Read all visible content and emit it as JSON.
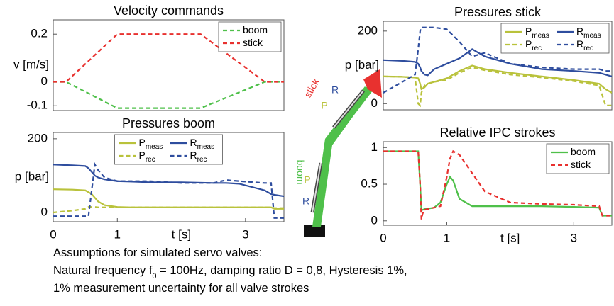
{
  "chart_data": [
    {
      "type": "line",
      "title": "Velocity commands",
      "ylabel": "v [m/s]",
      "x": [
        0,
        0.2,
        1.0,
        2.3,
        3.3,
        3.6
      ],
      "xlim": [
        0,
        3.6
      ],
      "ylim": [
        -0.12,
        0.26
      ],
      "yticks": [
        -0.1,
        0,
        0.2
      ],
      "legend": "upper right",
      "legend_columns": 1,
      "series": [
        {
          "name": "boom",
          "color": "#4fc04a",
          "linestyle": "dashed",
          "values": [
            0,
            0,
            -0.11,
            -0.11,
            0,
            0
          ]
        },
        {
          "name": "stick",
          "color": "#e8312f",
          "linestyle": "dashed",
          "values": [
            0,
            0,
            0.2,
            0.2,
            0,
            0
          ]
        }
      ]
    },
    {
      "type": "line",
      "title": "Pressures boom",
      "ylabel": "p [bar]",
      "x": [
        0,
        0.3,
        0.5,
        0.55,
        0.6,
        0.65,
        0.7,
        0.8,
        1.0,
        1.2,
        1.5,
        2.0,
        2.5,
        2.7,
        2.9,
        3.3,
        3.4,
        3.45,
        3.6
      ],
      "xlim": [
        0,
        3.6
      ],
      "ylim": [
        -25,
        217
      ],
      "yticks": [
        0,
        200
      ],
      "xticks": [
        0,
        1,
        3
      ],
      "xlabel": "t [s]",
      "legend": "upper center",
      "legend_columns": 2,
      "series": [
        {
          "name": "P",
          "sub": "meas",
          "color": "#b9c23b",
          "linestyle": "solid",
          "values": [
            63,
            62,
            60,
            55,
            50,
            40,
            30,
            20,
            15,
            14,
            14,
            14,
            14,
            14,
            14,
            14,
            14,
            10,
            10
          ]
        },
        {
          "name": "P",
          "sub": "rec",
          "color": "#b9c23b",
          "linestyle": "dashed",
          "values": [
            0,
            5,
            10,
            15,
            15,
            15,
            14,
            14,
            14,
            14,
            14,
            14,
            14,
            14,
            14,
            14,
            14,
            12,
            12
          ]
        },
        {
          "name": "R",
          "sub": "meas",
          "color": "#2e4d9e",
          "linestyle": "solid",
          "values": [
            130,
            128,
            126,
            120,
            110,
            100,
            95,
            90,
            85,
            84,
            82,
            82,
            80,
            80,
            78,
            60,
            50,
            48,
            44
          ]
        },
        {
          "name": "R",
          "sub": "rec",
          "color": "#2e4d9e",
          "linestyle": "dashed",
          "values": [
            -10,
            -10,
            -10,
            -10,
            60,
            130,
            115,
            95,
            85,
            85,
            85,
            80,
            80,
            88,
            85,
            80,
            80,
            -15,
            -15
          ]
        }
      ]
    },
    {
      "type": "line",
      "title": "Pressures stick",
      "ylabel": "p [bar]",
      "x": [
        0,
        0.3,
        0.5,
        0.55,
        0.58,
        0.6,
        0.65,
        0.7,
        0.8,
        1.0,
        1.2,
        1.4,
        1.6,
        2.0,
        2.5,
        3.0,
        3.4,
        3.5,
        3.6
      ],
      "xlim": [
        0,
        3.6
      ],
      "ylim": [
        -17,
        227
      ],
      "yticks": [
        0,
        200
      ],
      "legend": "upper right",
      "legend_columns": 2,
      "series": [
        {
          "name": "P",
          "sub": "meas",
          "color": "#b9c23b",
          "linestyle": "solid",
          "values": [
            75,
            74,
            72,
            70,
            55,
            40,
            45,
            55,
            60,
            70,
            90,
            105,
            95,
            85,
            75,
            65,
            55,
            40,
            30
          ]
        },
        {
          "name": "P",
          "sub": "rec",
          "color": "#b9c23b",
          "linestyle": "dashed",
          "values": [
            75,
            74,
            72,
            0,
            -5,
            30,
            50,
            55,
            60,
            65,
            85,
            100,
            92,
            80,
            72,
            62,
            50,
            -5,
            -5
          ]
        },
        {
          "name": "R",
          "sub": "meas",
          "color": "#2e4d9e",
          "linestyle": "solid",
          "values": [
            120,
            118,
            115,
            110,
            100,
            90,
            80,
            78,
            95,
            110,
            125,
            150,
            130,
            110,
            95,
            90,
            85,
            80,
            75
          ]
        },
        {
          "name": "R",
          "sub": "rec",
          "color": "#2e4d9e",
          "linestyle": "dashed",
          "values": [
            30,
            60,
            80,
            150,
            200,
            210,
            210,
            210,
            210,
            205,
            170,
            130,
            140,
            110,
            100,
            95,
            95,
            90,
            90
          ]
        }
      ]
    },
    {
      "type": "line",
      "title": "Relative IPC strokes",
      "x": [
        0,
        0.55,
        0.58,
        0.6,
        0.62,
        0.65,
        0.8,
        0.9,
        1.0,
        1.05,
        1.1,
        1.2,
        1.4,
        1.6,
        2.0,
        2.5,
        3.0,
        3.4,
        3.45,
        3.6
      ],
      "xlim": [
        0,
        3.6
      ],
      "ylim": [
        -0.06,
        1.08
      ],
      "yticks": [
        0,
        0.5,
        1
      ],
      "xticks": [
        0,
        1,
        3
      ],
      "xlabel": "t [s]",
      "legend": "upper right",
      "legend_columns": 1,
      "series": [
        {
          "name": "boom",
          "color": "#4fc04a",
          "linestyle": "solid",
          "values": [
            0.95,
            0.95,
            0.5,
            0.15,
            0.15,
            0.16,
            0.18,
            0.25,
            0.5,
            0.6,
            0.55,
            0.3,
            0.2,
            0.2,
            0.2,
            0.2,
            0.19,
            0.18,
            0.07,
            0.07
          ]
        },
        {
          "name": "stick",
          "color": "#e8312f",
          "linestyle": "dashed",
          "values": [
            0.95,
            0.95,
            0.5,
            0.02,
            0.1,
            0.15,
            0.18,
            0.2,
            0.6,
            0.85,
            0.95,
            0.9,
            0.65,
            0.4,
            0.25,
            0.23,
            0.22,
            0.2,
            0.07,
            0.07
          ]
        }
      ]
    }
  ],
  "diagram": {
    "labels": [
      "stick",
      "R",
      "P",
      "boom",
      "P",
      "R"
    ]
  },
  "notes": {
    "line1": "Assumptions for simulated servo valves:",
    "line2": [
      "Natural frequency f",
      "0",
      " = 100Hz,    damping ratio D = 0,8,    Hysteresis 1%,"
    ],
    "line3": "1% measurement uncertainty for all valve strokes"
  }
}
